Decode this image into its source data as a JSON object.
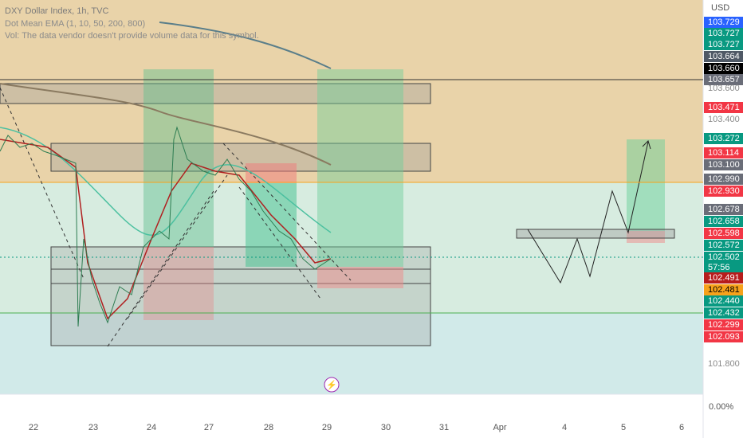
{
  "header": {
    "lines": [
      "DXY Dollar Index, 1h, TVC",
      "Dot Mean EMA (1, 10, 50, 200, 800)",
      "Vol: The data vendor doesn't provide volume data for this symbol."
    ]
  },
  "price_axis": {
    "currency": "USD",
    "labels": [
      {
        "text": "103.729",
        "color": "#2962ff"
      },
      {
        "text": "103.727",
        "color": "#089981"
      },
      {
        "text": "103.727",
        "color": "#089981"
      },
      {
        "text": "103.664",
        "color": "#4f5966"
      },
      {
        "text": "103.660",
        "color": "#000000"
      },
      {
        "text": "103.657",
        "color": "#6a6d78"
      },
      {
        "text": "103.600",
        "color": null
      },
      {
        "text": "103.471",
        "color": "#f23645"
      },
      {
        "text": "103.400",
        "color": null
      },
      {
        "text": "103.272",
        "color": "#089981"
      },
      {
        "text": "103.114",
        "color": "#f23645"
      },
      {
        "text": "103.100",
        "color": "#6a6d78"
      },
      {
        "text": "102.990",
        "color": "#6a6d78"
      },
      {
        "text": "102.930",
        "color": "#f23645"
      },
      {
        "text": "102.678",
        "color": "#6a6d78"
      },
      {
        "text": "102.658",
        "color": "#089981"
      },
      {
        "text": "102.598",
        "color": "#f23645"
      },
      {
        "text": "102.572",
        "color": "#089981"
      },
      {
        "text": "102.502",
        "color": "#089981"
      },
      {
        "text": "102.491",
        "color": "#b71c1c"
      },
      {
        "text": "102.481",
        "color": "#f7a21b"
      },
      {
        "text": "102.440",
        "color": "#089981"
      },
      {
        "text": "102.432",
        "color": "#089981"
      },
      {
        "text": "102.299",
        "color": "#f23645"
      },
      {
        "text": "102.093",
        "color": "#f23645"
      },
      {
        "text": "101.800",
        "color": null
      }
    ],
    "countdown": "57:56",
    "percent": "0.00%"
  },
  "time_axis": {
    "labels": [
      "22",
      "23",
      "24",
      "27",
      "28",
      "29",
      "30",
      "31",
      "Apr",
      "4",
      "5",
      "6"
    ]
  }
}
